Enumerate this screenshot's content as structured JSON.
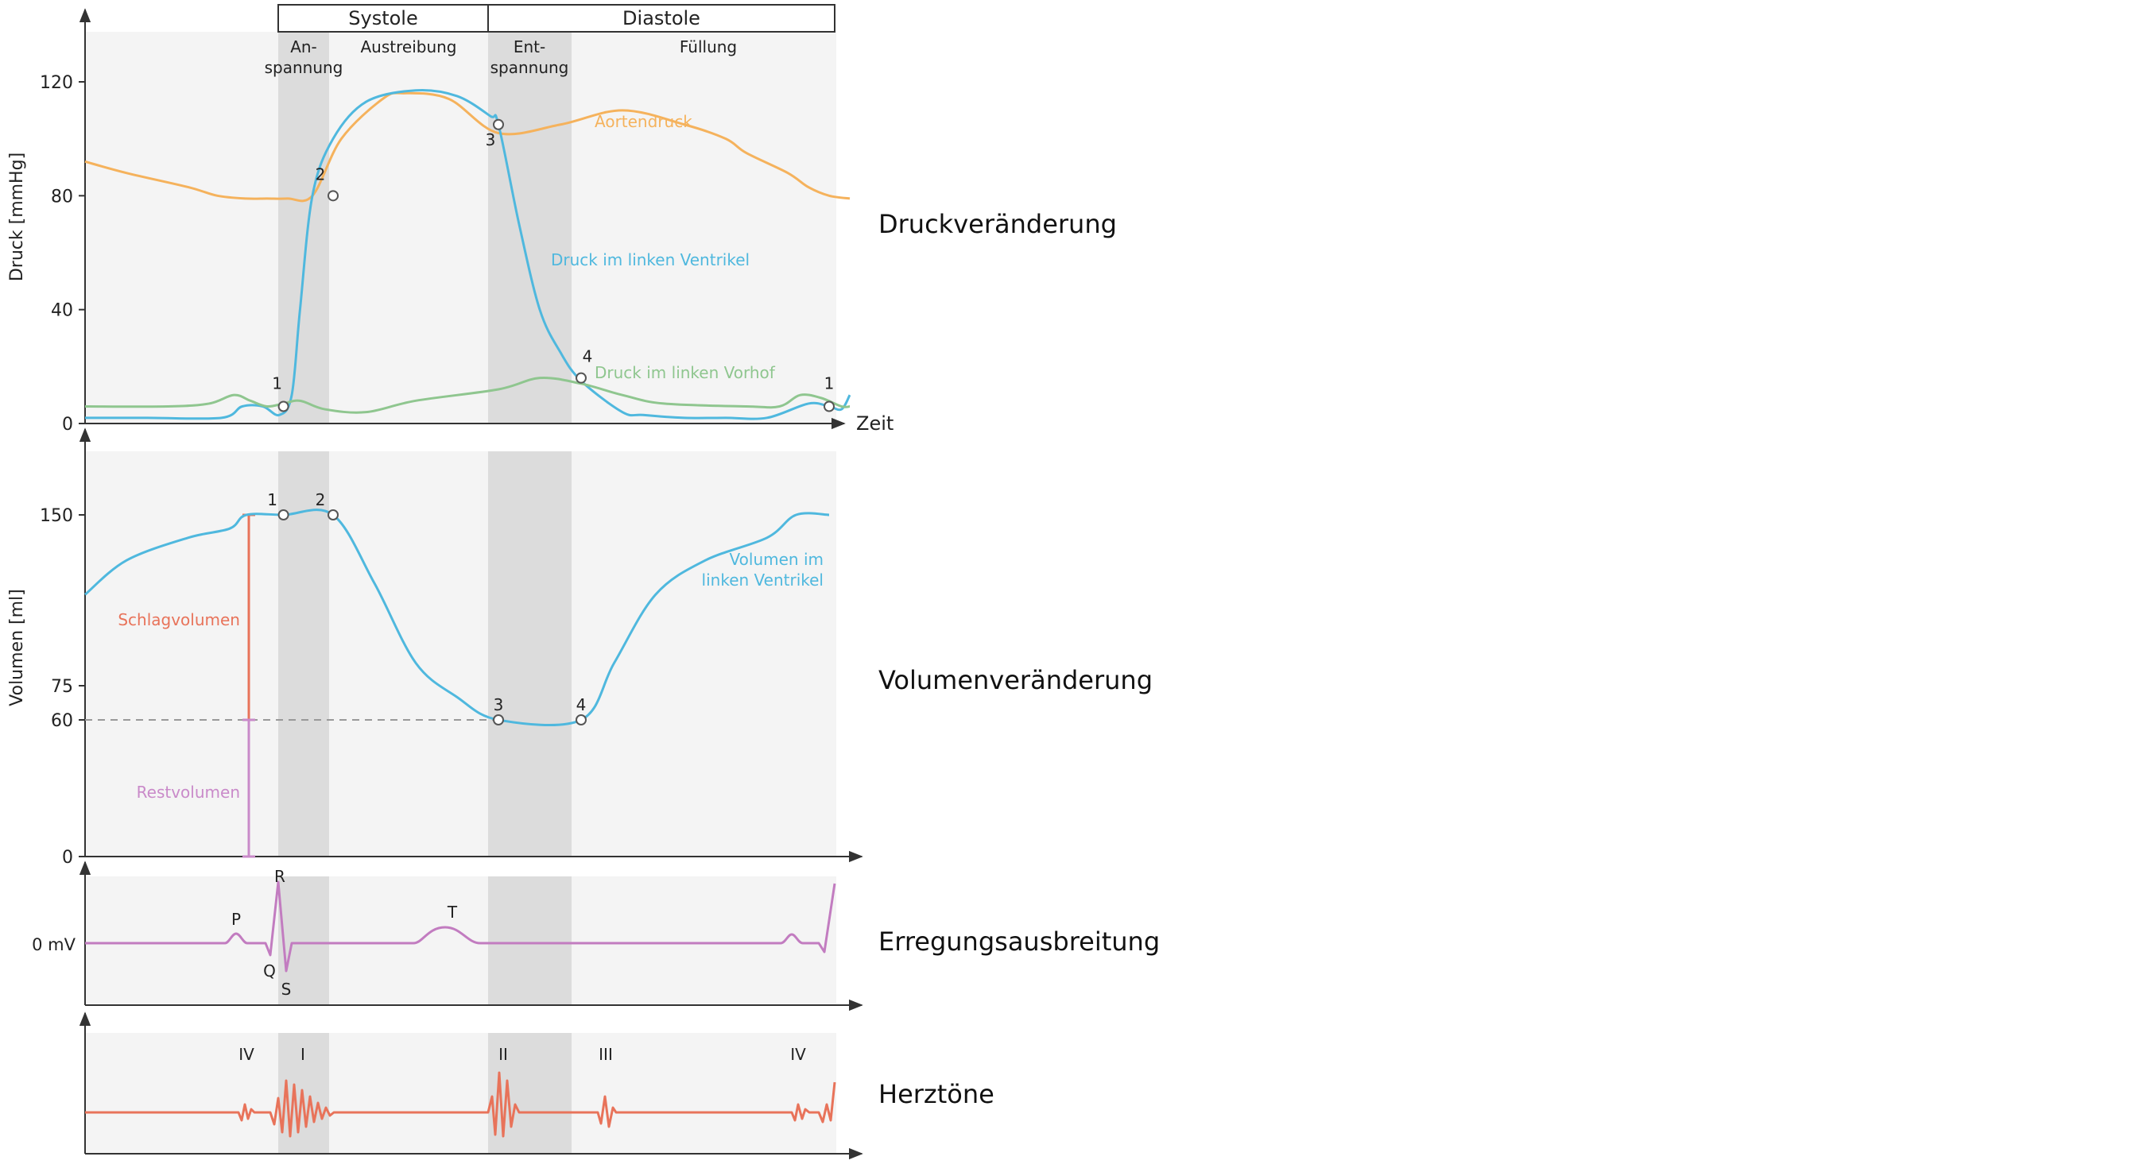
{
  "chart_data": [
    {
      "type": "line",
      "section": "Druckveränderung",
      "phases": {
        "systole_label": "Systole",
        "diastole_label": "Diastole",
        "sub": [
          "An-\nspannung",
          "Austreibung",
          "Ent-\nspannung",
          "Füllung"
        ]
      },
      "ylabel": "Druck [mmHg]",
      "xlabel": "Zeit",
      "ylim": [
        0,
        140
      ],
      "yticks": [
        0,
        40,
        80,
        120
      ],
      "series": [
        {
          "name": "Aortendruck",
          "color": "#f5b25c",
          "x": [
            0,
            0.1,
            0.25,
            0.32,
            0.39,
            0.44,
            0.49,
            0.55,
            0.62,
            0.72,
            0.77,
            0.88,
            1.0,
            1.15,
            1.3,
            1.45,
            1.55,
            1.6,
            1.7,
            1.75,
            1.8,
            1.85
          ],
          "y": [
            92,
            88,
            83,
            80,
            79,
            79,
            79,
            80,
            100,
            114,
            116,
            114,
            102,
            105,
            110,
            105,
            100,
            95,
            88,
            83,
            80,
            79
          ]
        },
        {
          "name": "Druck im linken Ventrikel",
          "color": "#4fb8de",
          "x": [
            0,
            0.15,
            0.33,
            0.38,
            0.43,
            0.47,
            0.5,
            0.52,
            0.55,
            0.6,
            0.68,
            0.8,
            0.9,
            0.98,
            1.0,
            1.05,
            1.1,
            1.15,
            1.2,
            1.3,
            1.35,
            1.45,
            1.55,
            1.65,
            1.75,
            1.8,
            1.83,
            1.85
          ],
          "y": [
            2,
            2,
            2,
            6,
            6,
            3,
            10,
            40,
            80,
            100,
            113,
            117,
            115,
            108,
            105,
            70,
            40,
            25,
            15,
            4,
            3,
            2,
            2,
            2,
            7,
            6,
            5,
            10
          ]
        },
        {
          "name": "Druck im linken Vorhof",
          "color": "#8fc68f",
          "x": [
            0,
            0.2,
            0.3,
            0.36,
            0.4,
            0.44,
            0.48,
            0.52,
            0.58,
            0.68,
            0.8,
            1.0,
            1.1,
            1.2,
            1.3,
            1.4,
            1.6,
            1.68,
            1.73,
            1.78,
            1.83,
            1.85
          ],
          "y": [
            6,
            6,
            7,
            10,
            8,
            6,
            7,
            8,
            5,
            4,
            8,
            12,
            16,
            14,
            10,
            7,
            6,
            6,
            10,
            9,
            6,
            6
          ]
        }
      ],
      "points": [
        {
          "label": "1",
          "x": 0.48,
          "y": 6
        },
        {
          "label": "2",
          "x": 0.6,
          "y": 80
        },
        {
          "label": "3",
          "x": 1.0,
          "y": 105
        },
        {
          "label": "4",
          "x": 1.2,
          "y": 16
        },
        {
          "label": "1",
          "x": 1.8,
          "y": 6
        }
      ],
      "right_label": "Druckveränderung"
    },
    {
      "type": "line",
      "section": "Volumenveränderung",
      "ylabel": "Volumen [ml]",
      "ylim": [
        0,
        180
      ],
      "yticks": [
        0,
        60,
        75,
        150
      ],
      "reference_line": 60,
      "series": [
        {
          "name": "Volumen im\nlinken Ventrikel",
          "color": "#4fb8de",
          "x": [
            0,
            0.1,
            0.25,
            0.35,
            0.39,
            0.48,
            0.6,
            0.7,
            0.8,
            0.9,
            1.0,
            1.2,
            1.28,
            1.38,
            1.5,
            1.65,
            1.72,
            1.8
          ],
          "y": [
            115,
            130,
            140,
            144,
            150,
            150,
            150,
            120,
            85,
            70,
            60,
            60,
            85,
            115,
            130,
            140,
            150,
            150
          ]
        }
      ],
      "points": [
        {
          "label": "1",
          "x": 0.48,
          "y": 150
        },
        {
          "label": "2",
          "x": 0.6,
          "y": 150
        },
        {
          "label": "3",
          "x": 1.0,
          "y": 60
        },
        {
          "label": "4",
          "x": 1.2,
          "y": 60
        }
      ],
      "annotations": [
        {
          "label": "Schlagvolumen",
          "from": 60,
          "to": 150,
          "color": "#e8735a"
        },
        {
          "label": "Restvolumen",
          "from": 0,
          "to": 60,
          "color": "#c98ac9"
        }
      ],
      "right_label": "Volumenveränderung"
    },
    {
      "type": "line",
      "section": "Erregungsausbreitung",
      "ylabel": "0 mV",
      "waves": [
        "P",
        "Q",
        "R",
        "S",
        "T"
      ],
      "right_label": "Erregungsausbreitung"
    },
    {
      "type": "line",
      "section": "Herztöne",
      "sounds": [
        "IV",
        "I",
        "II",
        "III",
        "IV"
      ],
      "right_label": "Herztöne"
    }
  ]
}
